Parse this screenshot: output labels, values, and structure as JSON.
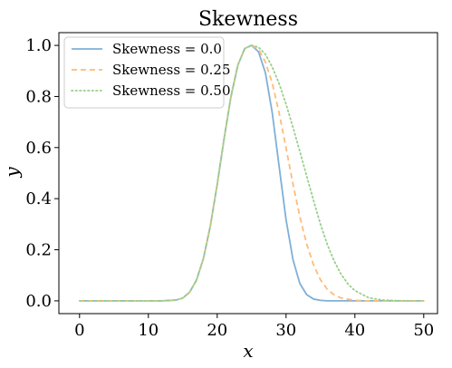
{
  "chart_data": {
    "type": "line",
    "title": "Skewness",
    "xlabel": "x",
    "ylabel": "y",
    "xlim": [
      -3,
      52
    ],
    "ylim": [
      -0.05,
      1.05
    ],
    "xticks": [
      0,
      10,
      20,
      30,
      40,
      50
    ],
    "yticks": [
      0.0,
      0.2,
      0.4,
      0.6,
      0.8,
      1.0
    ],
    "xtick_labels": [
      "0",
      "10",
      "20",
      "30",
      "40",
      "50"
    ],
    "ytick_labels": [
      "0.0",
      "0.2",
      "0.4",
      "0.6",
      "0.8",
      "1.0"
    ],
    "grid": false,
    "legend_position": "upper-left",
    "series": [
      {
        "name": "Skewness = 0.0",
        "color": "#7fb0d8",
        "dash": "solid",
        "x": [
          0,
          2,
          4,
          6,
          8,
          10,
          12,
          14,
          15,
          16,
          17,
          18,
          19,
          20,
          21,
          22,
          23,
          24,
          25,
          26,
          27,
          28,
          29,
          30,
          31,
          32,
          33,
          34,
          35,
          36,
          38,
          40,
          42,
          44,
          46,
          48,
          50
        ],
        "y": [
          0.0,
          0.0,
          0.0,
          0.0,
          0.0,
          0.0,
          0.0,
          0.003,
          0.011,
          0.034,
          0.082,
          0.166,
          0.293,
          0.456,
          0.635,
          0.8,
          0.923,
          0.988,
          1.0,
          0.975,
          0.893,
          0.735,
          0.525,
          0.318,
          0.162,
          0.068,
          0.024,
          0.007,
          0.002,
          0.0,
          0.0,
          0.0,
          0.0,
          0.0,
          0.0,
          0.0,
          0.0
        ]
      },
      {
        "name": "Skewness = 0.25",
        "color": "#ffbb78",
        "dash": "dashed",
        "x": [
          0,
          2,
          4,
          6,
          8,
          10,
          12,
          14,
          15,
          16,
          17,
          18,
          19,
          20,
          21,
          22,
          23,
          24,
          25,
          26,
          27,
          28,
          29,
          30,
          31,
          32,
          33,
          34,
          35,
          36,
          37,
          38,
          40,
          42,
          44,
          46,
          48,
          50
        ],
        "y": [
          0.0,
          0.0,
          0.0,
          0.0,
          0.0,
          0.0,
          0.0,
          0.003,
          0.011,
          0.034,
          0.082,
          0.166,
          0.293,
          0.456,
          0.635,
          0.8,
          0.923,
          0.988,
          1.0,
          0.985,
          0.935,
          0.852,
          0.735,
          0.598,
          0.458,
          0.33,
          0.222,
          0.14,
          0.082,
          0.045,
          0.023,
          0.011,
          0.002,
          0.0,
          0.0,
          0.0,
          0.0,
          0.0
        ]
      },
      {
        "name": "Skewness = 0.50",
        "color": "#98d08b",
        "dash": "dotted",
        "x": [
          0,
          2,
          4,
          6,
          8,
          10,
          12,
          14,
          15,
          16,
          17,
          18,
          19,
          20,
          21,
          22,
          23,
          24,
          25,
          26,
          27,
          28,
          29,
          30,
          31,
          32,
          33,
          34,
          35,
          36,
          37,
          38,
          39,
          40,
          42,
          44,
          46,
          48,
          50
        ],
        "y": [
          0.0,
          0.0,
          0.0,
          0.0,
          0.0,
          0.0,
          0.0,
          0.003,
          0.011,
          0.034,
          0.082,
          0.166,
          0.293,
          0.456,
          0.635,
          0.8,
          0.923,
          0.988,
          1.0,
          0.993,
          0.965,
          0.915,
          0.85,
          0.77,
          0.68,
          0.585,
          0.488,
          0.392,
          0.3,
          0.22,
          0.155,
          0.104,
          0.066,
          0.04,
          0.012,
          0.003,
          0.001,
          0.0,
          0.0
        ]
      }
    ]
  }
}
